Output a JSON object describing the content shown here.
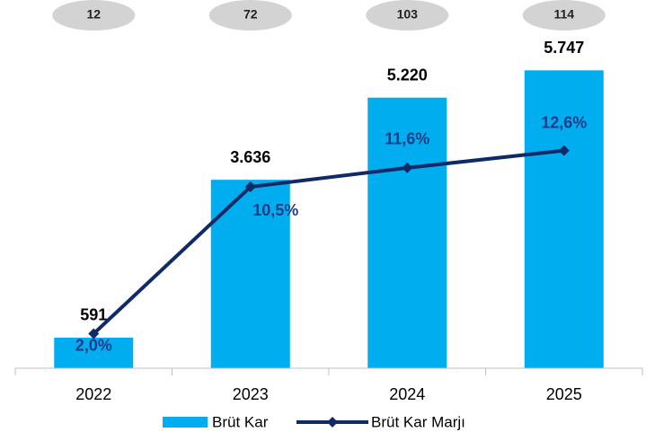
{
  "chart_data": {
    "type": "bar_line",
    "categories": [
      "2022",
      "2023",
      "2024",
      "2025"
    ],
    "annotations": [
      12,
      72,
      103,
      114
    ],
    "series": [
      {
        "name": "Brüt Kar",
        "type": "bar",
        "color": "#00aeef",
        "values": [
          591,
          3636,
          5220,
          5747
        ],
        "value_labels": [
          "591",
          "3.636",
          "5.220",
          "5.747"
        ]
      },
      {
        "name": "Brüt Kar Marjı",
        "type": "line",
        "axis": "y2",
        "color": "#0f2a66",
        "values": [
          2.0,
          10.5,
          11.6,
          12.6
        ],
        "value_labels": [
          "2,0%",
          "10,5%",
          "11,6%",
          "12,6%"
        ]
      }
    ],
    "ylim": [
      0,
      7000
    ],
    "y2lim": [
      0,
      21
    ],
    "legend": "bottom"
  }
}
